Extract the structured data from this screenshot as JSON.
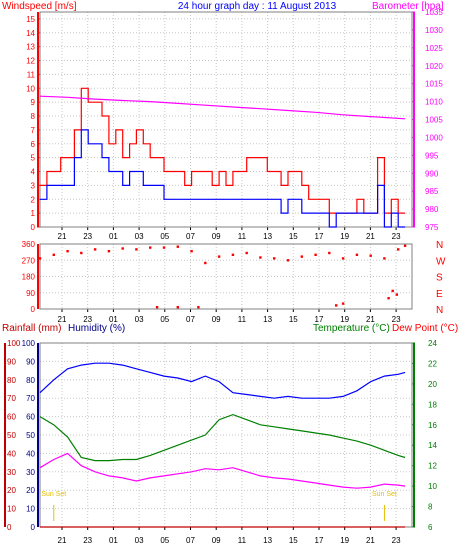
{
  "header": {
    "left_title": "Windspeed [m/s]",
    "center_title": "24 hour graph day : 11 August 2013",
    "right_title": "Barometer [hpa]"
  },
  "colors": {
    "red": "#ff0000",
    "blue": "#0000ff",
    "magenta": "#ff00ff",
    "green": "#008000",
    "darkblue": "#00008b",
    "darkred": "#c00000",
    "gold": "#e5c000",
    "grid": "#c8c8c8",
    "frame": "#808080"
  },
  "chart_data": [
    {
      "type": "line",
      "panel": "wind_barometer",
      "x_ticks": [
        "21",
        "23",
        "01",
        "03",
        "05",
        "07",
        "09",
        "11",
        "13",
        "15",
        "17",
        "19",
        "21",
        "23"
      ],
      "y_left": {
        "label": "Windspeed [m/s]",
        "ticks": [
          0,
          1,
          2,
          3,
          4,
          5,
          6,
          7,
          8,
          9,
          10,
          11,
          12,
          13,
          14,
          15
        ],
        "range": [
          0,
          15.5
        ]
      },
      "y_right": {
        "label": "Barometer [hpa]",
        "ticks": [
          975,
          980,
          985,
          990,
          995,
          1000,
          1005,
          1010,
          1015,
          1020,
          1025,
          1030,
          1035
        ],
        "range": [
          975,
          1035
        ]
      },
      "series": [
        {
          "axis": "left",
          "color": "red",
          "x": [
            0,
            0.5,
            1,
            1.5,
            2,
            2.5,
            3,
            3.5,
            4,
            4.5,
            5,
            5.5,
            6,
            6.5,
            7,
            7.5,
            8,
            8.5,
            9,
            9.5,
            10,
            10.5,
            11,
            11.5,
            12,
            12.5,
            13,
            13.5,
            14,
            14.5,
            15,
            15.5,
            16,
            16.5,
            17,
            17.5,
            18,
            18.5,
            19,
            19.5,
            20,
            20.5,
            21,
            21.5,
            22,
            22.5,
            23,
            23.5,
            24,
            24.5,
            25,
            25.5,
            26,
            26.5
          ],
          "y": [
            3,
            4,
            4,
            5,
            5,
            7,
            10,
            9,
            9,
            8,
            6,
            7,
            5,
            6,
            7,
            6,
            5,
            5,
            4,
            4,
            4,
            3,
            4,
            4,
            4,
            3,
            4,
            3,
            4,
            4,
            5,
            5,
            5,
            4,
            4,
            3,
            4,
            4,
            3,
            2,
            2,
            2,
            1,
            1,
            1,
            1,
            2,
            1,
            1,
            5,
            1,
            2,
            1,
            1
          ]
        },
        {
          "axis": "left",
          "color": "blue",
          "x": [
            0,
            0.5,
            1,
            1.5,
            2,
            2.5,
            3,
            3.5,
            4,
            4.5,
            5,
            5.5,
            6,
            6.5,
            7,
            7.5,
            8,
            8.5,
            9,
            9.5,
            10,
            10.5,
            11,
            11.5,
            12,
            12.5,
            13,
            13.5,
            14,
            14.5,
            15,
            15.5,
            16,
            16.5,
            17,
            17.5,
            18,
            18.5,
            19,
            19.5,
            20,
            20.5,
            21,
            21.5,
            22,
            22.5,
            23,
            23.5,
            24,
            24.5,
            25,
            25.5,
            26,
            26.5
          ],
          "y": [
            2,
            3,
            3,
            3,
            3,
            5,
            7,
            6,
            6,
            5,
            4,
            4,
            3,
            4,
            4,
            3,
            3,
            3,
            2,
            2,
            2,
            2,
            2,
            2,
            2,
            2,
            2,
            2,
            2,
            2,
            2,
            2,
            2,
            2,
            2,
            1,
            2,
            2,
            1,
            1,
            1,
            1,
            0,
            1,
            1,
            1,
            1,
            1,
            1,
            3,
            0,
            1,
            0,
            0
          ]
        },
        {
          "axis": "right",
          "color": "magenta",
          "x": [
            0,
            2,
            4,
            6,
            8,
            10,
            12,
            14,
            16,
            18,
            20,
            22,
            24,
            26.5
          ],
          "y": [
            1011.5,
            1011.2,
            1010.7,
            1010.3,
            1010,
            1009.5,
            1009,
            1008.5,
            1008,
            1007.5,
            1007,
            1006.3,
            1005.8,
            1005.2
          ]
        }
      ]
    },
    {
      "type": "scatter",
      "panel": "wind_direction",
      "x_ticks": [
        "21",
        "23",
        "01",
        "03",
        "05",
        "07",
        "09",
        "11",
        "13",
        "15",
        "17",
        "19",
        "21",
        "23"
      ],
      "y_ticks": [
        0,
        90,
        180,
        270,
        360
      ],
      "y_labels_right": [
        "N",
        "E",
        "S",
        "W",
        "N"
      ],
      "series": [
        {
          "color": "red",
          "x": [
            0,
            1,
            2,
            3,
            4,
            5,
            6,
            7,
            8,
            9,
            10,
            11,
            12,
            13,
            14,
            15,
            16,
            17,
            18,
            19,
            20,
            21,
            22,
            23,
            24,
            25,
            26,
            26.5,
            8.5,
            10,
            11.5,
            21.5,
            22,
            25.3,
            25.6,
            25.9
          ],
          "y": [
            280,
            300,
            320,
            310,
            330,
            320,
            335,
            330,
            340,
            340,
            345,
            320,
            255,
            290,
            300,
            310,
            285,
            280,
            270,
            290,
            300,
            310,
            280,
            300,
            295,
            280,
            330,
            350,
            10,
            10,
            10,
            20,
            30,
            60,
            100,
            80
          ]
        }
      ]
    },
    {
      "type": "line",
      "panel": "rain_humidity_temperature",
      "x_ticks": [
        "21",
        "23",
        "01",
        "03",
        "05",
        "07",
        "09",
        "11",
        "13",
        "15",
        "17",
        "19",
        "21",
        "23"
      ],
      "y_left_rain": {
        "label": "Rainfall (mm)",
        "ticks": [
          0,
          10,
          20,
          30,
          40,
          50,
          60,
          70,
          80,
          90,
          100
        ],
        "range": [
          0,
          100
        ]
      },
      "y_left_humidity": {
        "label": "Humidity (%)",
        "ticks": [
          0,
          10,
          20,
          30,
          40,
          50,
          60,
          70,
          80,
          90,
          100
        ],
        "range": [
          0,
          100
        ]
      },
      "y_right": {
        "label": "Temperature (°C)",
        "label2": "Dew Point (°C)",
        "ticks": [
          6,
          8,
          10,
          12,
          14,
          16,
          18,
          20,
          22,
          24
        ],
        "range": [
          6,
          24
        ]
      },
      "annotations": [
        {
          "text": "Sun Set",
          "x": 1
        },
        {
          "text": "Sun Set",
          "x": 25
        }
      ],
      "series": [
        {
          "axis": "humidity",
          "color": "blue",
          "x": [
            0,
            1,
            2,
            3,
            4,
            5,
            6,
            7,
            8,
            9,
            10,
            11,
            12,
            13,
            14,
            15,
            16,
            17,
            18,
            19,
            20,
            21,
            22,
            23,
            24,
            25,
            26,
            26.5
          ],
          "y": [
            73,
            80,
            86,
            88,
            89,
            89,
            88,
            86,
            84,
            82,
            81,
            79,
            82,
            79,
            73,
            72,
            71,
            70,
            71,
            70,
            70,
            70,
            71,
            74,
            79,
            82,
            83,
            84
          ]
        },
        {
          "axis": "right",
          "color": "green",
          "x": [
            0,
            1,
            2,
            3,
            4,
            5,
            6,
            7,
            8,
            9,
            10,
            11,
            12,
            13,
            14,
            15,
            16,
            17,
            18,
            19,
            20,
            21,
            22,
            23,
            24,
            25,
            26,
            26.5
          ],
          "y": [
            16.8,
            16,
            14.8,
            12.8,
            12.5,
            12.5,
            12.6,
            12.6,
            13,
            13.5,
            14,
            14.5,
            15,
            16.5,
            17,
            16.5,
            16,
            15.8,
            15.6,
            15.4,
            15.2,
            15,
            14.7,
            14.4,
            14,
            13.5,
            13,
            12.8
          ]
        },
        {
          "axis": "right",
          "color": "magenta",
          "x": [
            0,
            1,
            2,
            3,
            4,
            5,
            6,
            7,
            8,
            9,
            10,
            11,
            12,
            13,
            14,
            15,
            16,
            17,
            18,
            19,
            20,
            21,
            22,
            23,
            24,
            25,
            26,
            26.5
          ],
          "y": [
            11.8,
            12.6,
            13.2,
            12,
            11.4,
            11,
            10.8,
            10.5,
            10.8,
            11,
            11.2,
            11.4,
            11.7,
            11.6,
            11.8,
            11.4,
            11,
            10.8,
            10.7,
            10.5,
            10.3,
            10.1,
            9.9,
            9.8,
            9.9,
            10.2,
            10.1,
            10
          ]
        },
        {
          "axis": "rain",
          "color": "darkred",
          "x": [
            0,
            26.5
          ],
          "y": [
            0,
            0
          ]
        }
      ]
    }
  ]
}
